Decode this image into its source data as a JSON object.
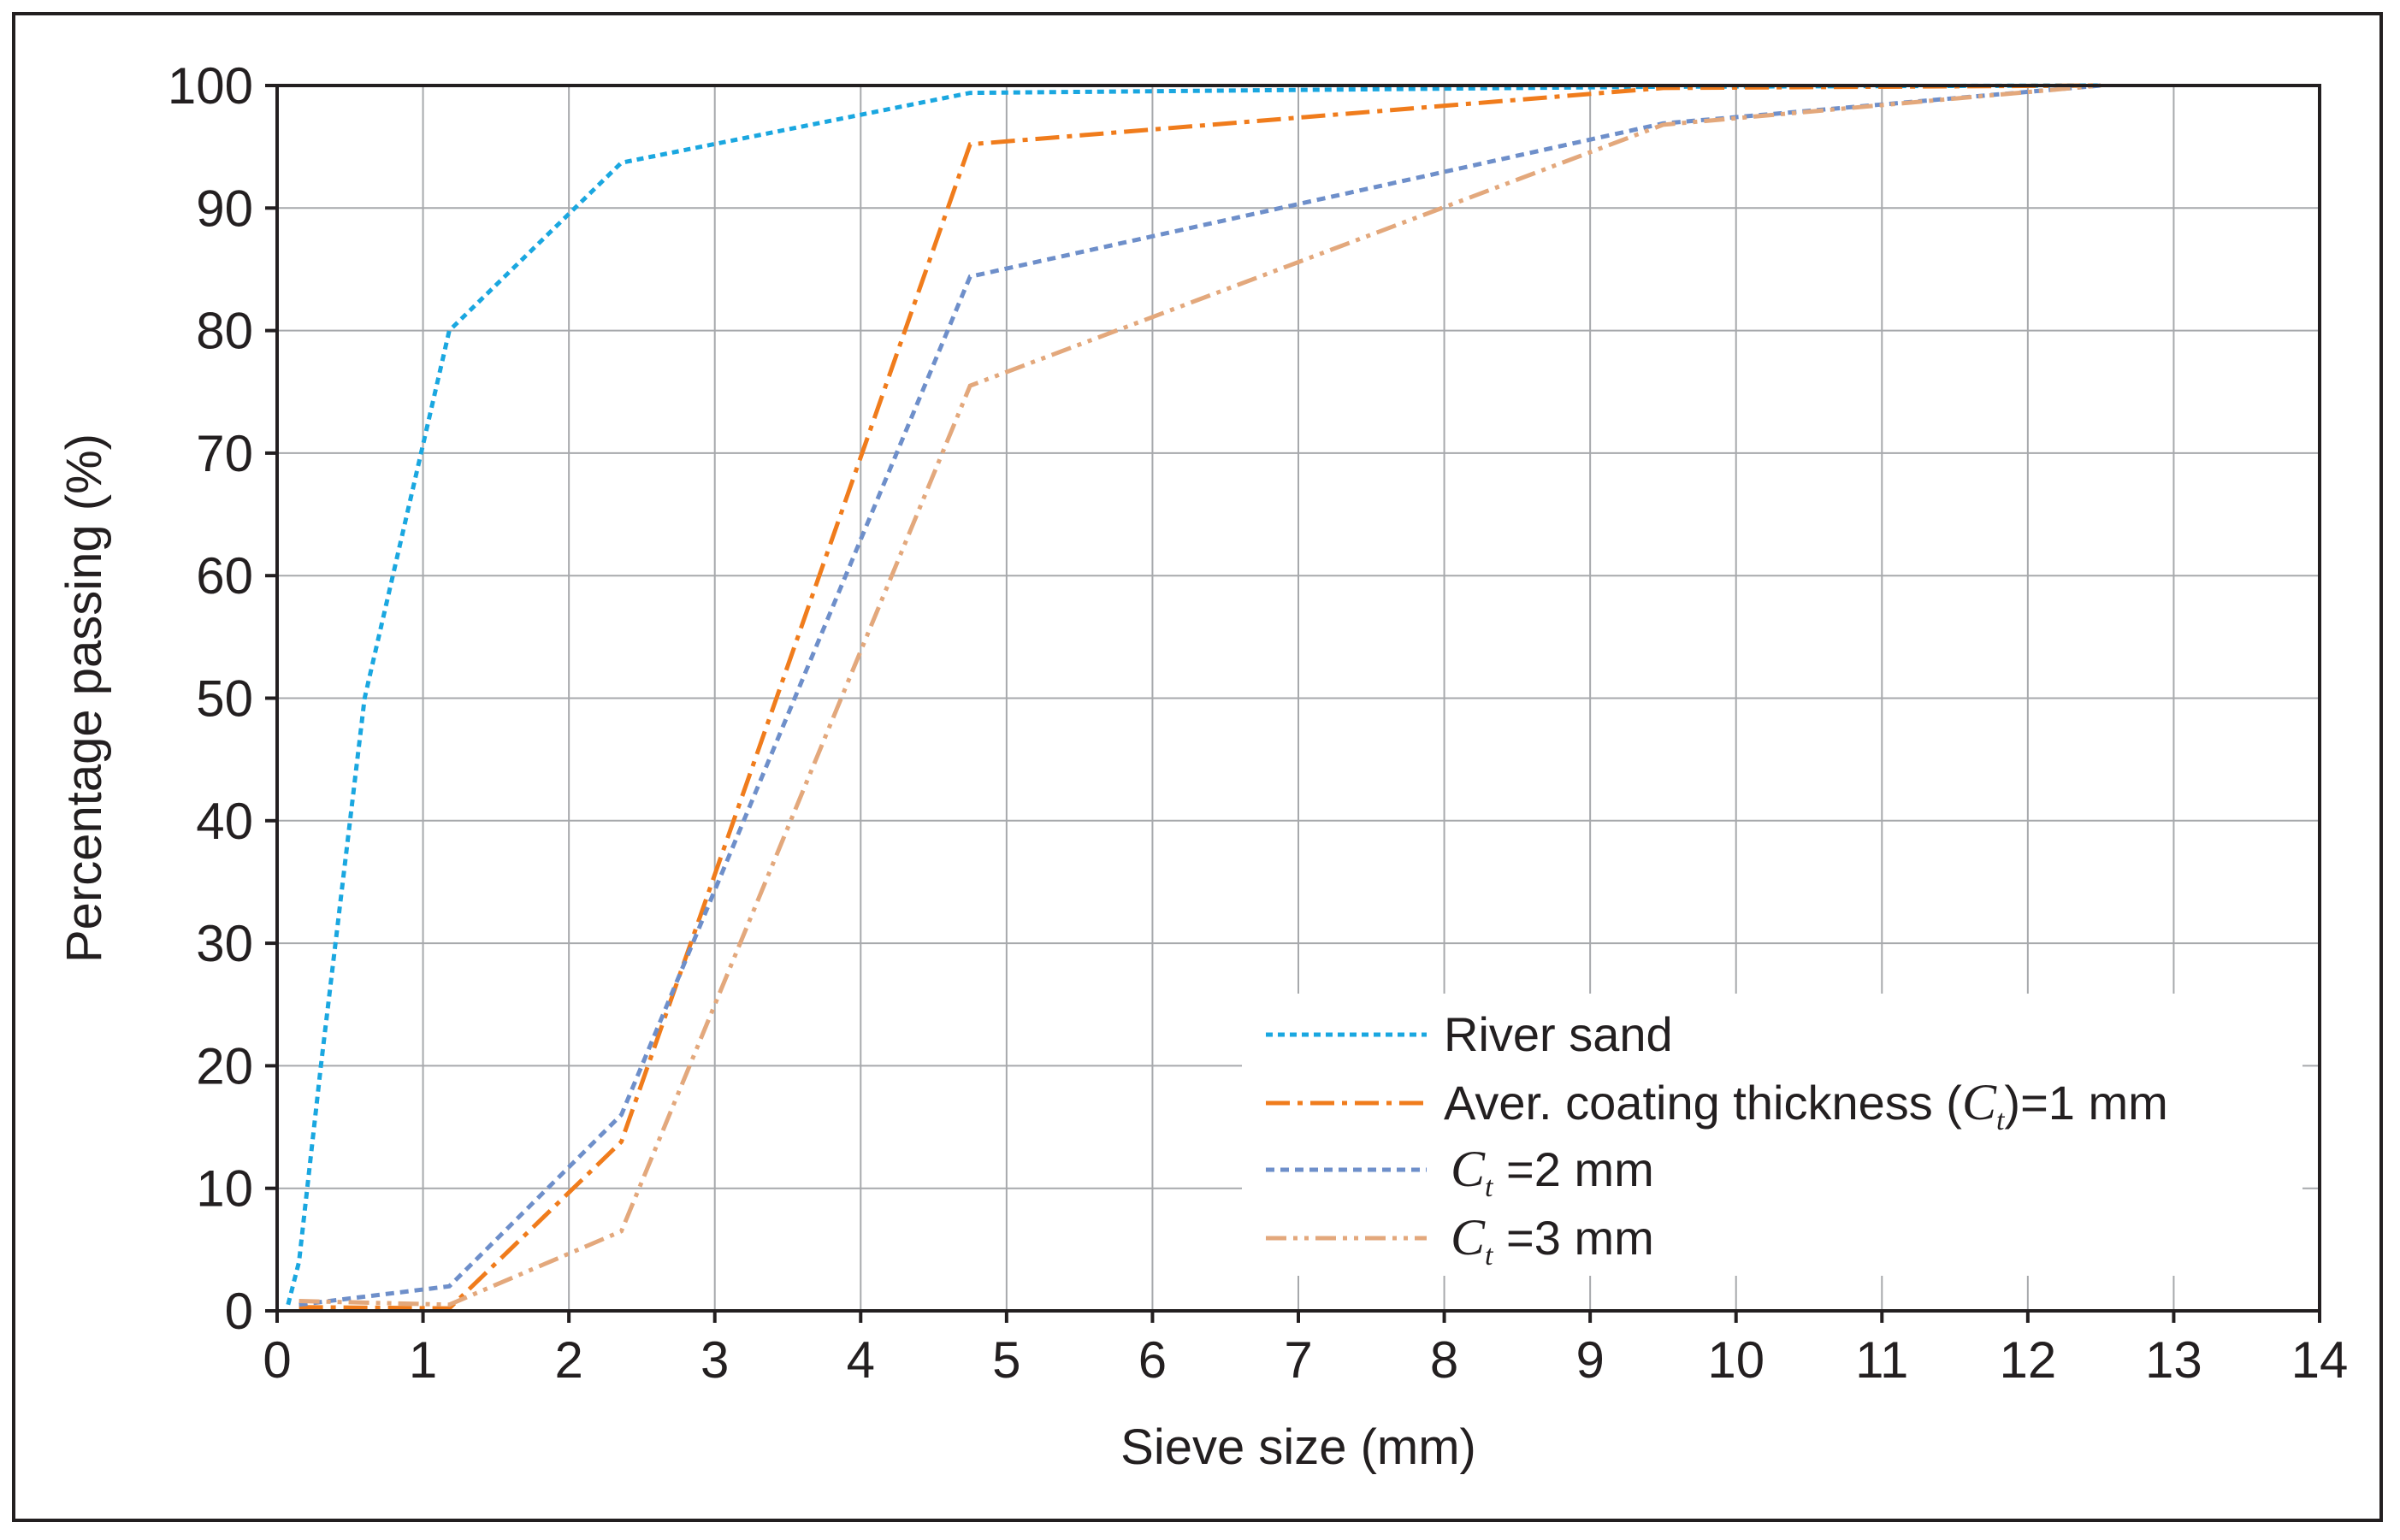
{
  "chart_data": {
    "type": "line",
    "xlabel": "Sieve size (mm)",
    "ylabel": "Percentage passing (%)",
    "xlim": [
      0,
      14
    ],
    "ylim": [
      0,
      100
    ],
    "x_ticks": [
      "0",
      "1",
      "2",
      "3",
      "4",
      "5",
      "6",
      "7",
      "8",
      "9",
      "10",
      "11",
      "12",
      "13",
      "14"
    ],
    "y_ticks": [
      "0",
      "10",
      "20",
      "30",
      "40",
      "50",
      "60",
      "70",
      "80",
      "90",
      "100"
    ],
    "grid": true,
    "legend_position": "bottom-right",
    "series": [
      {
        "name": "River sand",
        "color": "#1aa7e0",
        "dash": "dotted",
        "x": [
          0.075,
          0.15,
          0.3,
          0.6,
          1.18,
          2.36,
          4.75,
          9.5,
          12.5
        ],
        "y": [
          0.5,
          4,
          20,
          50,
          80,
          93.7,
          99.4,
          99.9,
          100
        ]
      },
      {
        "name_prefix": "Aver. coating thickness (",
        "name_var": "C",
        "name_sub": "t",
        "name_suffix": ")=1 mm",
        "color": "#f07c1c",
        "dash": "dash-dot",
        "x": [
          0.15,
          1.18,
          2.36,
          4.75,
          9.5,
          12.5
        ],
        "y": [
          0.3,
          0.2,
          13.8,
          95.2,
          99.8,
          100
        ]
      },
      {
        "name_var": "C",
        "name_sub": "t",
        "name_suffix": " =2 mm",
        "color": "#6e8fca",
        "dash": "dashed",
        "x": [
          0.15,
          1.18,
          2.36,
          4.75,
          9.5,
          12.5
        ],
        "y": [
          0.5,
          2,
          16,
          84.4,
          96.9,
          100
        ]
      },
      {
        "name_var": "C",
        "name_sub": "t",
        "name_suffix": " =3 mm",
        "color": "#e3a87c",
        "dash": "dash-dot-dot",
        "x": [
          0.15,
          1.18,
          2.36,
          4.75,
          9.5,
          12.5
        ],
        "y": [
          0.8,
          0.5,
          6.5,
          75.5,
          96.8,
          100
        ]
      }
    ]
  }
}
